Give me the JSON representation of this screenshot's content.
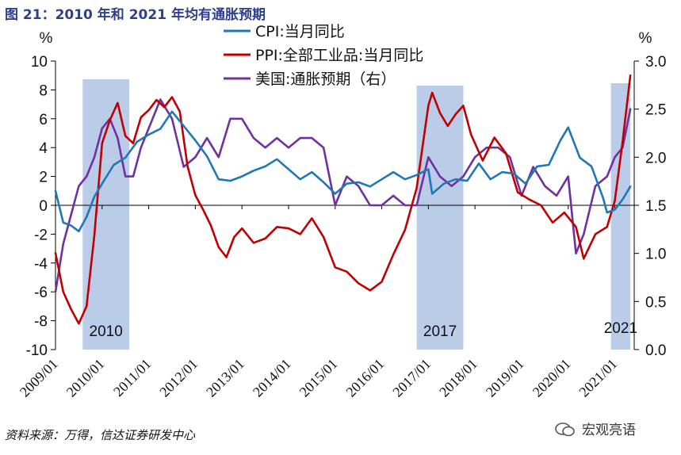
{
  "title": "图 21：2010 年和 2021 年均有通胀预期",
  "source": "资料来源：万得，信达证券研发中心",
  "watermark": "宏观亮语",
  "colors": {
    "cpi": "#1f77b4",
    "ppi": "#c00000",
    "us": "#7030a0",
    "band": "#b4c6e7",
    "title": "#2f3f8f"
  },
  "chart_data": {
    "type": "line",
    "title": "",
    "left_axis": {
      "unit_label": "%",
      "ylim": [
        -10,
        10
      ],
      "ticks": [
        "10",
        "8",
        "6",
        "4",
        "2",
        "0",
        "-2",
        "-4",
        "-6",
        "-8",
        "-10"
      ]
    },
    "right_axis": {
      "unit_label": "%",
      "ylim": [
        0.0,
        3.0
      ],
      "ticks": [
        "3.0",
        "2.5",
        "2.0",
        "1.5",
        "1.0",
        "0.5",
        "0.0"
      ]
    },
    "x_ticks": [
      "2009/01",
      "2010/01",
      "2011/01",
      "2012/01",
      "2013/01",
      "2014/01",
      "2015/01",
      "2016/01",
      "2017/01",
      "2018/01",
      "2019/01",
      "2020/01",
      "2021/01"
    ],
    "shaded_periods": [
      {
        "label": "2010",
        "start": "2009/08",
        "end": "2010/08"
      },
      {
        "label": "2017",
        "start": "2016/10",
        "end": "2017/10"
      },
      {
        "label": "2021",
        "start": "2020/12",
        "end": "2021/05"
      }
    ],
    "legend": {
      "position": "top-center"
    },
    "series": [
      {
        "name": "CPI:当月同比",
        "axis": "left",
        "color": "#1f77b4",
        "x": [
          "2009/01",
          "2009/03",
          "2009/05",
          "2009/07",
          "2009/09",
          "2009/11",
          "2010/01",
          "2010/04",
          "2010/07",
          "2010/10",
          "2011/01",
          "2011/04",
          "2011/07",
          "2011/10",
          "2012/01",
          "2012/04",
          "2012/07",
          "2012/10",
          "2013/01",
          "2013/04",
          "2013/07",
          "2013/10",
          "2014/01",
          "2014/04",
          "2014/07",
          "2014/10",
          "2015/01",
          "2015/04",
          "2015/07",
          "2015/10",
          "2016/01",
          "2016/04",
          "2016/07",
          "2016/10",
          "2017/01",
          "2017/02",
          "2017/05",
          "2017/08",
          "2017/11",
          "2018/02",
          "2018/05",
          "2018/08",
          "2018/11",
          "2019/02",
          "2019/05",
          "2019/08",
          "2019/11",
          "2020/01",
          "2020/04",
          "2020/07",
          "2020/10",
          "2020/11",
          "2021/01",
          "2021/03",
          "2021/05"
        ],
        "y": [
          1.0,
          -1.2,
          -1.4,
          -1.8,
          -0.8,
          0.6,
          1.5,
          2.8,
          3.3,
          4.4,
          4.9,
          5.3,
          6.5,
          5.5,
          4.5,
          3.4,
          1.8,
          1.7,
          2.0,
          2.4,
          2.7,
          3.2,
          2.5,
          1.8,
          2.3,
          1.6,
          0.8,
          1.5,
          1.6,
          1.3,
          1.8,
          2.3,
          1.8,
          2.1,
          2.5,
          0.8,
          1.5,
          1.8,
          1.7,
          2.9,
          1.8,
          2.3,
          2.2,
          1.5,
          2.7,
          2.8,
          4.5,
          5.4,
          3.3,
          2.7,
          0.5,
          -0.5,
          -0.3,
          0.4,
          1.3
        ]
      },
      {
        "name": "PPI:全部工业品:当月同比",
        "axis": "left",
        "color": "#c00000",
        "x": [
          "2009/01",
          "2009/03",
          "2009/05",
          "2009/07",
          "2009/09",
          "2009/11",
          "2010/01",
          "2010/03",
          "2010/05",
          "2010/07",
          "2010/09",
          "2010/11",
          "2011/01",
          "2011/03",
          "2011/05",
          "2011/07",
          "2011/09",
          "2011/11",
          "2012/01",
          "2012/03",
          "2012/05",
          "2012/07",
          "2012/09",
          "2012/11",
          "2013/01",
          "2013/04",
          "2013/07",
          "2013/10",
          "2014/01",
          "2014/04",
          "2014/07",
          "2014/10",
          "2015/01",
          "2015/04",
          "2015/07",
          "2015/10",
          "2016/01",
          "2016/04",
          "2016/07",
          "2016/10",
          "2017/01",
          "2017/02",
          "2017/04",
          "2017/06",
          "2017/08",
          "2017/10",
          "2017/12",
          "2018/03",
          "2018/06",
          "2018/09",
          "2018/12",
          "2019/03",
          "2019/06",
          "2019/09",
          "2019/12",
          "2020/03",
          "2020/05",
          "2020/08",
          "2020/11",
          "2021/01",
          "2021/03",
          "2021/05"
        ],
        "y": [
          -3.3,
          -6.0,
          -7.2,
          -8.2,
          -7.0,
          -2.1,
          4.3,
          5.9,
          7.1,
          4.8,
          4.3,
          6.1,
          6.6,
          7.3,
          6.8,
          7.5,
          6.5,
          2.7,
          0.7,
          -0.3,
          -1.4,
          -2.9,
          -3.6,
          -2.2,
          -1.6,
          -2.6,
          -2.3,
          -1.5,
          -1.6,
          -2.0,
          -0.9,
          -2.2,
          -4.3,
          -4.6,
          -5.4,
          -5.9,
          -5.3,
          -3.4,
          -1.7,
          1.2,
          6.9,
          7.8,
          6.4,
          5.5,
          6.3,
          6.9,
          4.9,
          3.1,
          4.7,
          3.6,
          0.9,
          0.4,
          0.0,
          -1.2,
          -0.5,
          -1.5,
          -3.7,
          -2.0,
          -1.5,
          0.3,
          4.4,
          9.0
        ]
      },
      {
        "name": "美国:通胀预期（右）",
        "axis": "right",
        "color": "#7030a0",
        "x": [
          "2009/01",
          "2009/03",
          "2009/05",
          "2009/07",
          "2009/09",
          "2009/11",
          "2010/01",
          "2010/03",
          "2010/05",
          "2010/07",
          "2010/09",
          "2010/11",
          "2011/01",
          "2011/04",
          "2011/07",
          "2011/10",
          "2012/01",
          "2012/04",
          "2012/07",
          "2012/10",
          "2013/01",
          "2013/04",
          "2013/07",
          "2013/10",
          "2014/01",
          "2014/04",
          "2014/07",
          "2014/10",
          "2015/01",
          "2015/04",
          "2015/07",
          "2015/10",
          "2016/01",
          "2016/04",
          "2016/07",
          "2016/10",
          "2017/01",
          "2017/04",
          "2017/07",
          "2017/10",
          "2018/01",
          "2018/04",
          "2018/07",
          "2018/10",
          "2019/01",
          "2019/04",
          "2019/07",
          "2019/10",
          "2020/01",
          "2020/03",
          "2020/05",
          "2020/08",
          "2020/11",
          "2021/01",
          "2021/03",
          "2021/05"
        ],
        "y": [
          0.6,
          1.1,
          1.4,
          1.7,
          1.8,
          2.0,
          2.3,
          2.4,
          2.2,
          1.8,
          1.8,
          2.1,
          2.3,
          2.6,
          2.4,
          1.9,
          2.0,
          2.2,
          2.0,
          2.4,
          2.4,
          2.2,
          2.1,
          2.2,
          2.1,
          2.2,
          2.2,
          2.1,
          1.5,
          1.8,
          1.7,
          1.5,
          1.5,
          1.6,
          1.5,
          1.5,
          2.0,
          1.8,
          1.7,
          1.8,
          2.0,
          2.1,
          2.1,
          2.0,
          1.6,
          1.9,
          1.7,
          1.6,
          1.8,
          1.0,
          1.2,
          1.7,
          1.8,
          2.0,
          2.1,
          2.5
        ]
      }
    ]
  }
}
